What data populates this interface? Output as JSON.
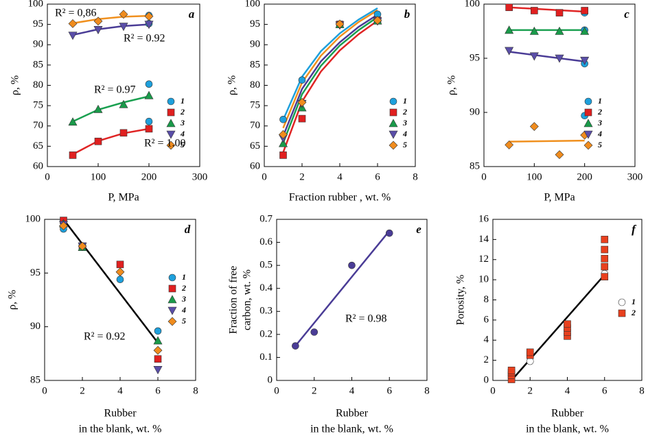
{
  "chart_data": [
    {
      "type": "scatter",
      "panel": "a",
      "x_label": "P, MPa",
      "y_label": "ρ, %",
      "xlim": [
        0,
        300
      ],
      "ylim": [
        60,
        100
      ],
      "xticks": [
        0,
        100,
        200,
        300
      ],
      "yticks": [
        60,
        65,
        70,
        75,
        80,
        85,
        90,
        95,
        100
      ],
      "series": [
        {
          "name": "1",
          "color": "#1ea0dc",
          "marker": "circle",
          "x": [
            200,
            200,
            200,
            200
          ],
          "values": [
            97.2,
            95.2,
            80.3,
            71.1
          ]
        },
        {
          "name": "2",
          "color": "#e02020",
          "marker": "square",
          "x": [
            50,
            100,
            150,
            200
          ],
          "values": [
            62.8,
            66.2,
            68.3,
            69.3
          ]
        },
        {
          "name": "3",
          "color": "#1a9a4a",
          "marker": "triangle-up",
          "x": [
            50,
            100,
            150,
            200
          ],
          "values": [
            71.0,
            74.1,
            75.3,
            77.5
          ]
        },
        {
          "name": "4",
          "color": "#5a4ea8",
          "marker": "triangle-down",
          "x": [
            50,
            100,
            150,
            200
          ],
          "values": [
            92.3,
            93.7,
            94.5,
            95.0
          ]
        },
        {
          "name": "5",
          "color": "#f08c1e",
          "marker": "diamond",
          "x": [
            50,
            100,
            150,
            200
          ],
          "values": [
            95.2,
            95.8,
            97.5,
            97.0
          ]
        }
      ],
      "fits": [
        {
          "color": "#f0901e",
          "x": [
            50,
            100,
            150,
            200
          ],
          "values": [
            95.3,
            96.3,
            96.9,
            97.1
          ]
        },
        {
          "color": "#4a3c96",
          "x": [
            50,
            100,
            150,
            200
          ],
          "values": [
            92.4,
            93.8,
            94.6,
            95.0
          ]
        },
        {
          "color": "#1aa050",
          "x": [
            50,
            100,
            150,
            200
          ],
          "values": [
            71.1,
            74.0,
            75.8,
            77.3
          ]
        },
        {
          "color": "#e02424",
          "x": [
            50,
            100,
            150,
            200
          ],
          "values": [
            63.0,
            66.3,
            68.2,
            69.3
          ]
        }
      ],
      "annotations": [
        "R² = 0,86",
        "R² = 0.92",
        "R² = 0.97",
        "R² = 1.00"
      ]
    },
    {
      "type": "scatter",
      "panel": "b",
      "x_label": "Fraction rubber , wt. %",
      "y_label": "ρ, %",
      "xlim": [
        0,
        8
      ],
      "ylim": [
        60,
        100
      ],
      "xticks": [
        0,
        2,
        4,
        6,
        8
      ],
      "yticks": [
        60,
        65,
        70,
        75,
        80,
        85,
        90,
        95,
        100
      ],
      "series": [
        {
          "name": "1",
          "color": "#1ea0dc",
          "marker": "circle",
          "x": [
            1,
            2,
            4,
            6
          ],
          "values": [
            71.6,
            81.3,
            95.1,
            97.5
          ]
        },
        {
          "name": "2",
          "color": "#e02020",
          "marker": "square",
          "x": [
            1,
            2,
            4,
            6
          ],
          "values": [
            62.8,
            71.8,
            95.0,
            96.0
          ]
        },
        {
          "name": "3",
          "color": "#1a9a4a",
          "marker": "triangle-up",
          "x": [
            1,
            2,
            4,
            6
          ],
          "values": [
            65.7,
            74.5,
            95.0,
            95.9
          ]
        },
        {
          "name": "4",
          "color": "#5a4ea8",
          "marker": "triangle-down",
          "x": [
            1,
            2,
            4,
            6
          ],
          "values": [
            67.0,
            75.5,
            94.8,
            95.8
          ]
        },
        {
          "name": "5",
          "color": "#f08c1e",
          "marker": "diamond",
          "x": [
            1,
            2,
            4,
            6
          ],
          "values": [
            67.9,
            75.8,
            95.1,
            96.0
          ]
        }
      ],
      "fits": [
        {
          "color": "#1ea0dc",
          "x": [
            1,
            2,
            3,
            4,
            5,
            6
          ],
          "values": [
            71.5,
            82.1,
            88.4,
            92.8,
            96.2,
            99.0
          ]
        },
        {
          "color": "#f0901e",
          "x": [
            1,
            2,
            3,
            4,
            5,
            6
          ],
          "values": [
            69.5,
            80.7,
            87.3,
            92.0,
            95.6,
            98.5
          ]
        },
        {
          "color": "#4a3c96",
          "x": [
            1,
            2,
            3,
            4,
            5,
            6
          ],
          "values": [
            67.5,
            79.1,
            85.9,
            90.6,
            94.4,
            97.4
          ]
        },
        {
          "color": "#1aa050",
          "x": [
            1,
            2,
            3,
            4,
            5,
            6
          ],
          "values": [
            65.8,
            77.8,
            84.8,
            89.8,
            93.6,
            96.8
          ]
        },
        {
          "color": "#e02424",
          "x": [
            1,
            2,
            3,
            4,
            5,
            6
          ],
          "values": [
            63.5,
            76.0,
            83.4,
            88.6,
            92.6,
            95.9
          ]
        }
      ],
      "annotations": []
    },
    {
      "type": "scatter",
      "panel": "c",
      "x_label": "P, MPa",
      "y_label": "ρ, %",
      "xlim": [
        0,
        300
      ],
      "ylim": [
        85,
        100
      ],
      "xticks": [
        0,
        100,
        200,
        300
      ],
      "yticks": [
        85,
        90,
        95,
        100
      ],
      "series": [
        {
          "name": "1",
          "color": "#1ea0dc",
          "marker": "circle",
          "x": [
            200,
            200,
            200,
            200
          ],
          "values": [
            99.2,
            97.6,
            94.5,
            89.7
          ]
        },
        {
          "name": "2",
          "color": "#e02020",
          "marker": "square",
          "x": [
            50,
            100,
            150,
            200
          ],
          "values": [
            99.7,
            99.4,
            99.2,
            99.4
          ]
        },
        {
          "name": "3",
          "color": "#1a9a4a",
          "marker": "triangle-up",
          "x": [
            50,
            100,
            150,
            200
          ],
          "values": [
            97.6,
            97.5,
            97.5,
            97.5
          ]
        },
        {
          "name": "4",
          "color": "#5a4ea8",
          "marker": "triangle-down",
          "x": [
            50,
            100,
            150,
            200
          ],
          "values": [
            95.7,
            95.2,
            95.0,
            94.8
          ]
        },
        {
          "name": "5",
          "color": "#f08c1e",
          "marker": "diamond",
          "x": [
            50,
            100,
            150,
            200
          ],
          "values": [
            87.0,
            88.7,
            86.1,
            87.9
          ]
        }
      ],
      "fits": [
        {
          "color": "#e02424",
          "x": [
            50,
            200
          ],
          "values": [
            99.7,
            99.3
          ]
        },
        {
          "color": "#1aa050",
          "x": [
            50,
            200
          ],
          "values": [
            97.6,
            97.6
          ]
        },
        {
          "color": "#4a3c96",
          "x": [
            50,
            200
          ],
          "values": [
            95.6,
            94.7
          ]
        },
        {
          "color": "#f0901e",
          "x": [
            50,
            200
          ],
          "values": [
            87.3,
            87.4
          ]
        }
      ],
      "annotations": []
    },
    {
      "type": "scatter",
      "panel": "d",
      "x_label": [
        "Rubber",
        "in the blank, wt. %"
      ],
      "y_label": "ρ, %",
      "xlim": [
        0,
        8
      ],
      "ylim": [
        85,
        100
      ],
      "xticks": [
        0,
        2,
        4,
        6,
        8
      ],
      "yticks": [
        85,
        90,
        95,
        100
      ],
      "series": [
        {
          "name": "1",
          "color": "#1ea0dc",
          "marker": "circle",
          "x": [
            1,
            2,
            4,
            6
          ],
          "values": [
            99.1,
            97.5,
            94.4,
            89.6
          ]
        },
        {
          "name": "2",
          "color": "#e02020",
          "marker": "square",
          "x": [
            1,
            2,
            4,
            6
          ],
          "values": [
            99.9,
            97.5,
            95.8,
            87.0
          ]
        },
        {
          "name": "3",
          "color": "#1a9a4a",
          "marker": "triangle-up",
          "x": [
            1,
            2,
            6
          ],
          "values": [
            99.6,
            97.4,
            88.7
          ]
        },
        {
          "name": "4",
          "color": "#5a4ea8",
          "marker": "triangle-down",
          "x": [
            1,
            2,
            6
          ],
          "values": [
            99.5,
            97.5,
            86.0
          ]
        },
        {
          "name": "5",
          "color": "#f08c1e",
          "marker": "diamond",
          "x": [
            1,
            2,
            4,
            6
          ],
          "values": [
            99.4,
            97.5,
            95.1,
            87.8
          ]
        }
      ],
      "fits": [
        {
          "color": "#000000",
          "x": [
            1,
            6
          ],
          "values": [
            100.0,
            88.5
          ]
        }
      ],
      "annotations": [
        "R² = 0.92"
      ]
    },
    {
      "type": "scatter",
      "panel": "e",
      "x_label": [
        "Rubber",
        "in the blank, wt. %"
      ],
      "y_label": [
        "Fraction of free",
        "carbon, wt. %"
      ],
      "xlim": [
        0,
        8
      ],
      "ylim": [
        0,
        0.7
      ],
      "xticks": [
        0,
        2,
        4,
        6,
        8
      ],
      "yticks": [
        0,
        0.1,
        0.2,
        0.3,
        0.4,
        0.5,
        0.6,
        0.7
      ],
      "series": [
        {
          "color": "#4a3c96",
          "marker": "circle",
          "x": [
            1,
            2,
            4,
            6
          ],
          "values": [
            0.15,
            0.21,
            0.5,
            0.64
          ]
        }
      ],
      "fits": [
        {
          "color": "#4a3c96",
          "x": [
            1,
            6
          ],
          "values": [
            0.15,
            0.65
          ]
        }
      ],
      "annotations": [
        "R² = 0.98"
      ]
    },
    {
      "type": "scatter",
      "panel": "f",
      "x_label": [
        "Rubber",
        "in the blank, wt. %"
      ],
      "y_label": "Porosity, %",
      "xlim": [
        0,
        8
      ],
      "ylim": [
        0,
        16
      ],
      "xticks": [
        0,
        2,
        4,
        6,
        8
      ],
      "yticks": [
        0,
        2,
        4,
        6,
        8,
        10,
        12,
        14,
        16
      ],
      "series": [
        {
          "name": "1",
          "color": "#ffffff",
          "marker": "circle",
          "x": [
            1,
            2,
            6
          ],
          "values": [
            0.5,
            1.9,
            10.6
          ]
        },
        {
          "name": "2",
          "color": "#e8401e",
          "marker": "square",
          "x": [
            1,
            1,
            1,
            1,
            2,
            2,
            4,
            4,
            4,
            4,
            6,
            6,
            6,
            6,
            6
          ],
          "values": [
            0.1,
            0.5,
            0.8,
            1.0,
            2.5,
            2.8,
            4.4,
            4.8,
            5.2,
            5.6,
            10.3,
            11.3,
            12.1,
            13.0,
            14.0
          ]
        }
      ],
      "fits": [
        {
          "color": "#000000",
          "x": [
            1,
            6
          ],
          "values": [
            0,
            10.5
          ]
        }
      ],
      "annotations": []
    }
  ]
}
